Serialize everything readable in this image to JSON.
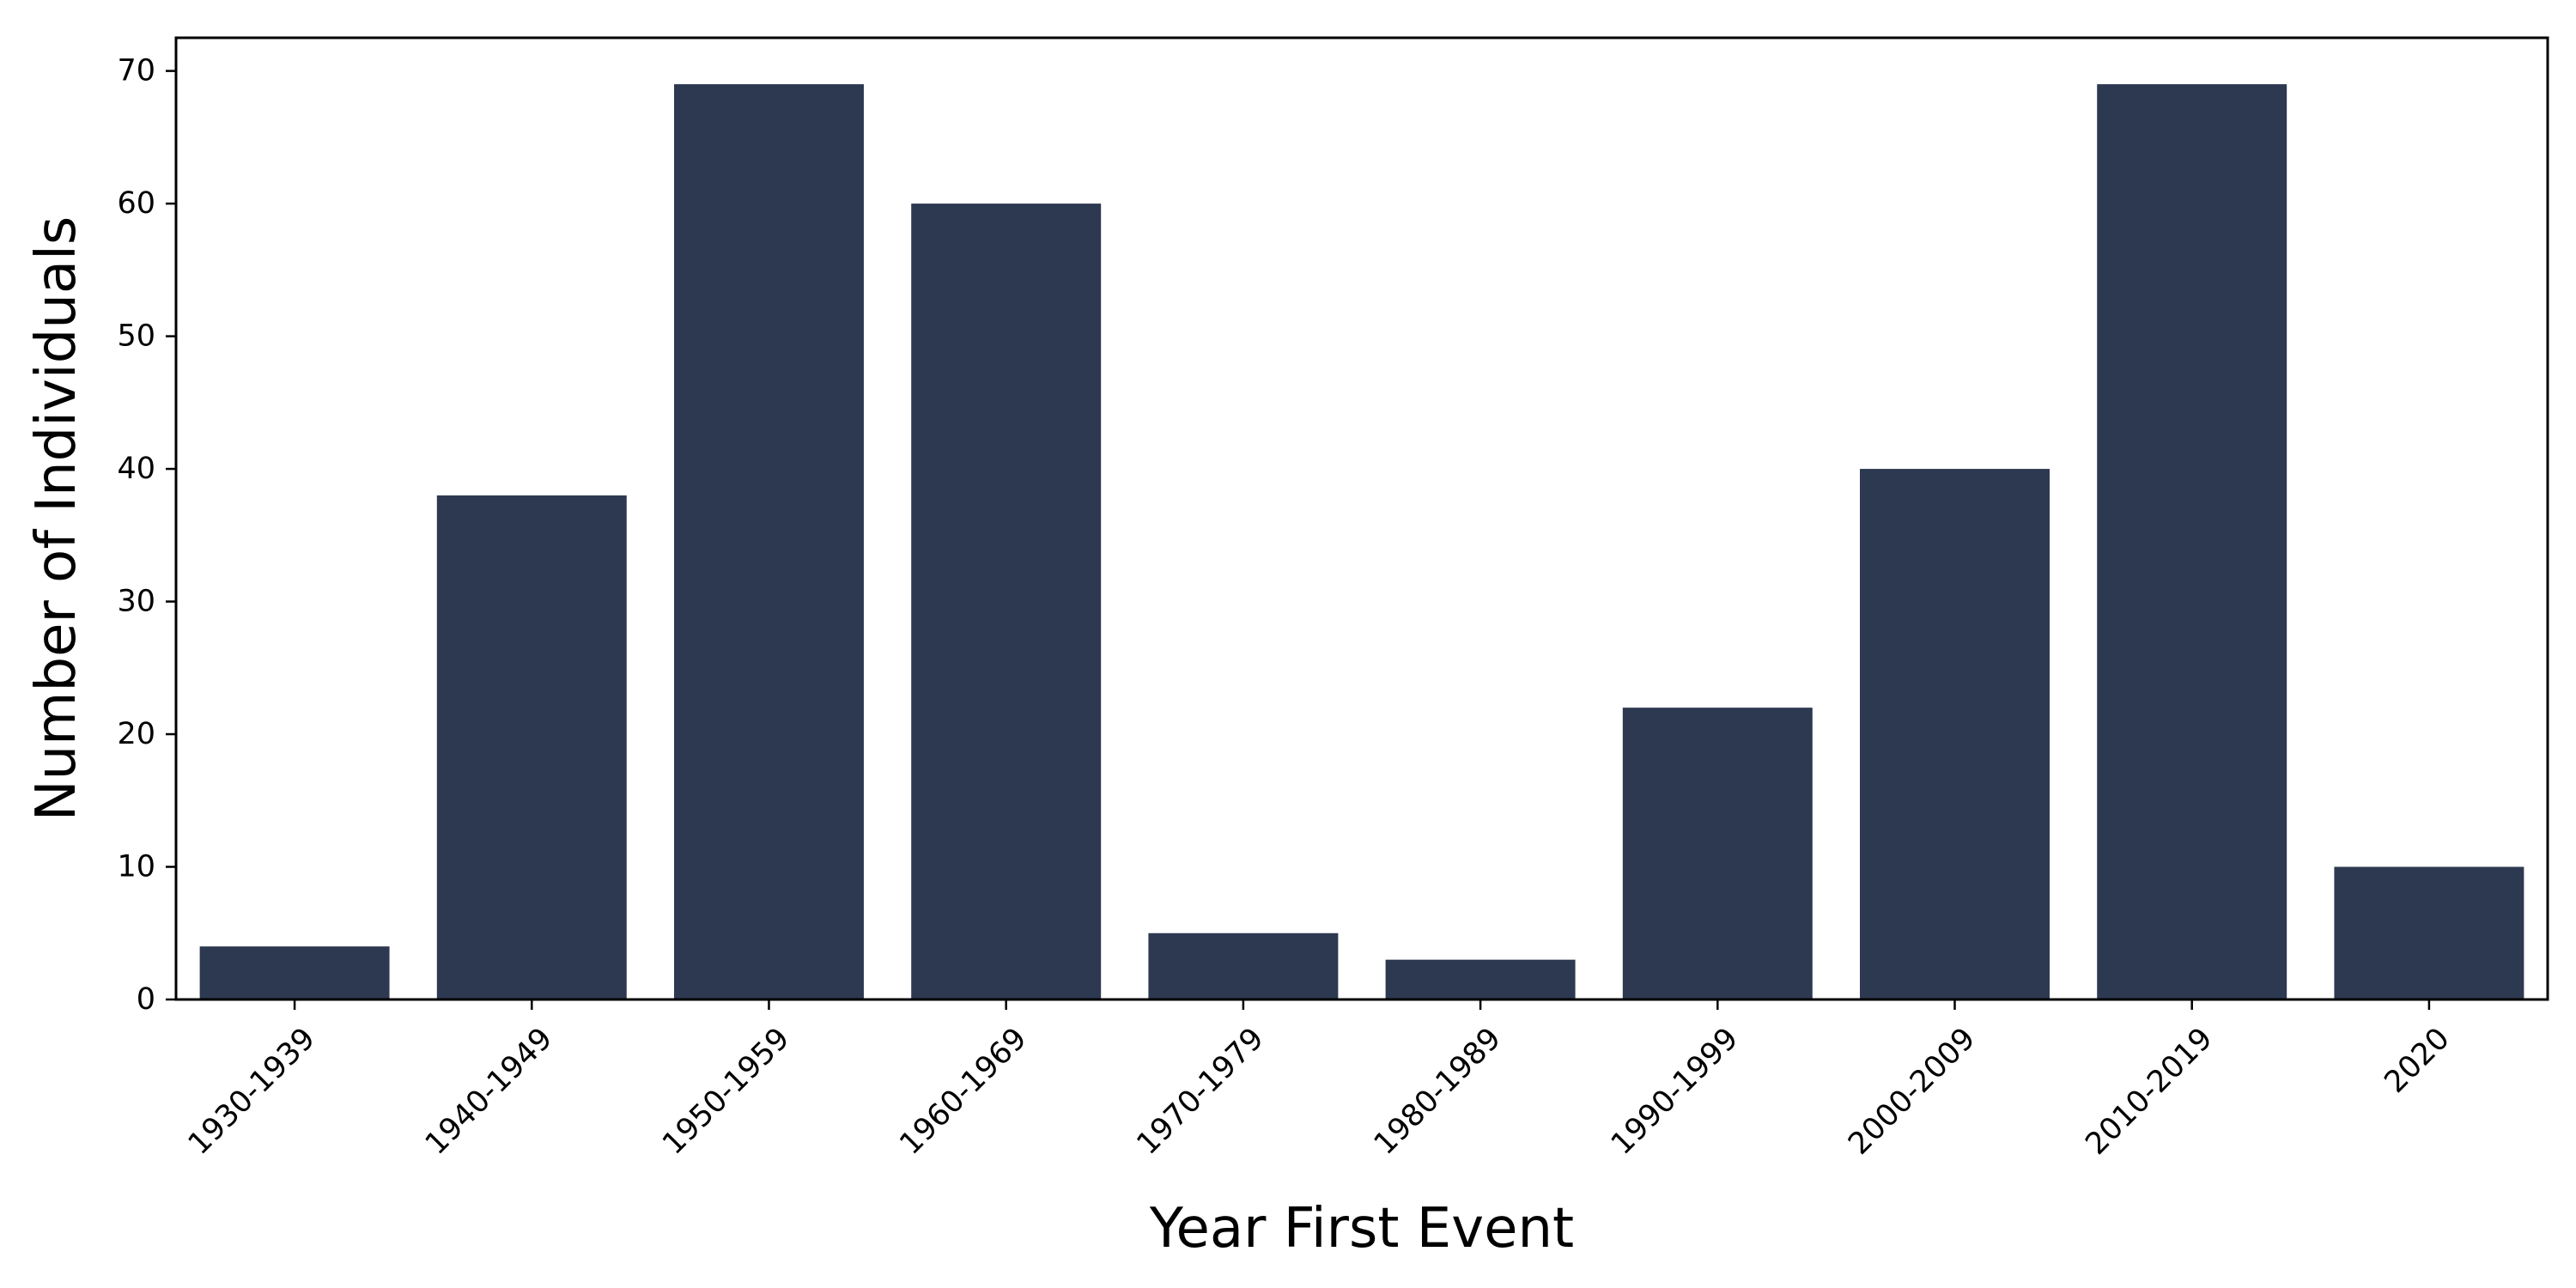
{
  "chart_data": {
    "type": "bar",
    "title": "",
    "xlabel": "Year First Event",
    "ylabel": "Number of Individuals",
    "categories": [
      "1930-1939",
      "1940-1949",
      "1950-1959",
      "1960-1969",
      "1970-1979",
      "1980-1989",
      "1990-1999",
      "2000-2009",
      "2010-2019",
      "2020"
    ],
    "values": [
      4,
      38,
      69,
      60,
      5,
      3,
      22,
      40,
      69,
      10
    ],
    "ylim": [
      0,
      72.5
    ],
    "yticks": [
      0,
      10,
      20,
      30,
      40,
      50,
      60,
      70
    ],
    "bar_color": "#2d3950",
    "grid": false,
    "legend": "none",
    "xtick_rotation_deg": 45
  }
}
